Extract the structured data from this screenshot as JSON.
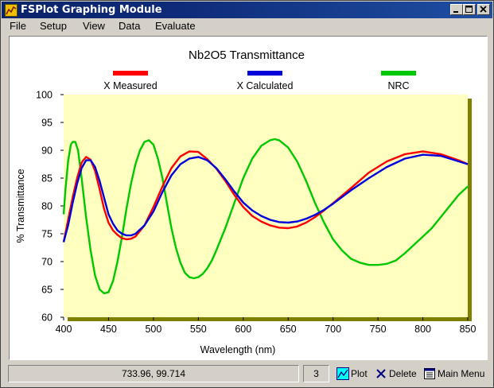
{
  "window": {
    "title": "FSPlot Graphing Module"
  },
  "menu": [
    "File",
    "Setup",
    "View",
    "Data",
    "Evaluate"
  ],
  "chart_data": {
    "type": "line",
    "title": "Nb2O5 Transmittance",
    "xlabel": "Wavelength (nm)",
    "ylabel": "% Transmittance",
    "xlim": [
      400,
      850
    ],
    "ylim": [
      60,
      100
    ],
    "xticks": [
      400,
      450,
      500,
      550,
      600,
      650,
      700,
      750,
      800,
      850
    ],
    "yticks": [
      60,
      65,
      70,
      75,
      80,
      85,
      90,
      95,
      100
    ],
    "legend_position": "top",
    "plot_background": "#ffffc0",
    "series": [
      {
        "name": "X Measured",
        "color": "#ff0000",
        "x": [
          400,
          405,
          410,
          415,
          420,
          425,
          430,
          435,
          440,
          445,
          450,
          455,
          460,
          465,
          470,
          475,
          480,
          490,
          500,
          510,
          520,
          530,
          540,
          550,
          560,
          570,
          580,
          590,
          600,
          610,
          620,
          630,
          640,
          650,
          660,
          670,
          680,
          690,
          700,
          720,
          740,
          760,
          780,
          800,
          820,
          840,
          850
        ],
        "y": [
          73.5,
          77.5,
          81.5,
          85.0,
          87.8,
          88.8,
          88.3,
          86.3,
          83.0,
          79.5,
          77.0,
          75.6,
          74.8,
          74.2,
          74.0,
          74.1,
          74.5,
          76.5,
          79.8,
          83.5,
          86.8,
          88.9,
          89.8,
          89.7,
          88.4,
          86.7,
          84.5,
          82.0,
          79.8,
          78.2,
          77.2,
          76.5,
          76.1,
          76.0,
          76.3,
          77.0,
          78.0,
          79.2,
          80.5,
          83.2,
          86.0,
          88.0,
          89.3,
          89.8,
          89.3,
          88.2,
          87.5
        ]
      },
      {
        "name": "X Calculated",
        "color": "#0000dd",
        "x": [
          400,
          405,
          410,
          415,
          420,
          425,
          430,
          435,
          440,
          445,
          450,
          455,
          460,
          465,
          470,
          475,
          480,
          490,
          500,
          510,
          520,
          530,
          540,
          550,
          560,
          570,
          580,
          590,
          600,
          610,
          620,
          630,
          640,
          650,
          660,
          670,
          680,
          690,
          700,
          720,
          740,
          760,
          780,
          800,
          820,
          840,
          850
        ],
        "y": [
          73.5,
          76.5,
          80.5,
          84.0,
          86.8,
          88.2,
          88.2,
          87.0,
          84.5,
          81.5,
          78.5,
          76.8,
          75.6,
          75.0,
          74.7,
          74.7,
          75.0,
          76.5,
          79.0,
          82.5,
          85.5,
          87.5,
          88.5,
          88.8,
          88.2,
          86.8,
          84.8,
          82.6,
          80.6,
          79.2,
          78.2,
          77.5,
          77.1,
          77.0,
          77.2,
          77.7,
          78.4,
          79.3,
          80.4,
          82.8,
          85.0,
          87.0,
          88.5,
          89.2,
          89.0,
          88.0,
          87.5
        ]
      },
      {
        "name": "NRC",
        "color": "#00c800",
        "x": [
          400,
          402,
          405,
          408,
          410,
          413,
          416,
          420,
          425,
          430,
          435,
          440,
          445,
          450,
          455,
          460,
          465,
          470,
          475,
          480,
          485,
          490,
          495,
          500,
          505,
          510,
          515,
          520,
          525,
          530,
          535,
          540,
          545,
          550,
          555,
          560,
          565,
          570,
          580,
          590,
          600,
          610,
          620,
          630,
          635,
          640,
          650,
          660,
          670,
          680,
          690,
          700,
          710,
          720,
          730,
          740,
          750,
          760,
          770,
          780,
          790,
          800,
          810,
          820,
          830,
          840,
          850
        ],
        "y": [
          78.5,
          83.0,
          88.0,
          91.0,
          91.5,
          91.5,
          90.0,
          85.0,
          78.0,
          72.0,
          67.5,
          65.0,
          64.3,
          64.5,
          66.5,
          70.0,
          74.5,
          79.5,
          84.0,
          87.5,
          90.0,
          91.5,
          91.8,
          91.0,
          88.5,
          85.0,
          80.5,
          76.0,
          72.5,
          69.8,
          68.0,
          67.2,
          67.0,
          67.2,
          67.8,
          68.8,
          70.2,
          72.0,
          76.0,
          80.5,
          85.0,
          88.5,
          90.8,
          91.8,
          92.0,
          91.8,
          90.5,
          88.0,
          84.5,
          80.5,
          77.0,
          74.0,
          72.0,
          70.5,
          69.8,
          69.4,
          69.4,
          69.6,
          70.2,
          71.5,
          73.0,
          74.5,
          76.0,
          78.0,
          80.0,
          82.0,
          83.5
        ]
      }
    ]
  },
  "status": {
    "coords": "733.96, 99.714",
    "count": "3"
  },
  "toolbar": {
    "plot_label": "Plot",
    "delete_label": "Delete",
    "main_menu_label": "Main Menu"
  }
}
